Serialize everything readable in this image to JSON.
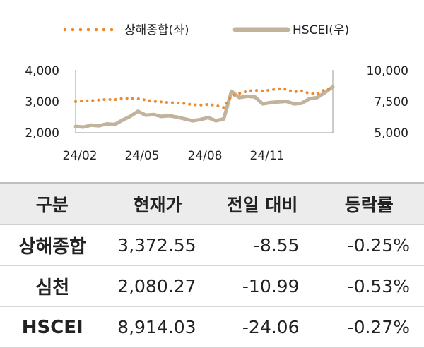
{
  "chart_data": {
    "type": "line",
    "x_ticks": [
      "24/02",
      "24/05",
      "24/08",
      "24/11"
    ],
    "y_left": {
      "ticks": [
        "4,000",
        "3,000",
        "2,000"
      ],
      "range": [
        2000,
        4000
      ]
    },
    "y_right": {
      "ticks": [
        "10,000",
        "7,500",
        "5,000"
      ],
      "range": [
        5000,
        10000
      ]
    },
    "grid": false,
    "legend_position": "top",
    "series": [
      {
        "name": "상해종합(좌)",
        "axis": "left",
        "color": "#ee8a2e",
        "style": "dotted",
        "values": [
          2990,
          3015,
          3020,
          3040,
          3060,
          3050,
          3090,
          3100,
          3080,
          3040,
          3000,
          2980,
          2960,
          2950,
          2930,
          2890,
          2880,
          2900,
          2870,
          2800,
          3170,
          3250,
          3320,
          3350,
          3330,
          3360,
          3400,
          3380,
          3300,
          3330,
          3250,
          3230,
          3380,
          3390
        ]
      },
      {
        "name": "HSCEI(우)",
        "axis": "right",
        "color": "#c2b49c",
        "style": "solid",
        "values": [
          5500,
          5450,
          5600,
          5550,
          5700,
          5650,
          6000,
          6300,
          6700,
          6400,
          6450,
          6300,
          6350,
          6250,
          6100,
          5950,
          6050,
          6200,
          5950,
          6100,
          8300,
          7800,
          7900,
          7850,
          7300,
          7400,
          7450,
          7500,
          7300,
          7350,
          7700,
          7800,
          8200,
          8650
        ]
      }
    ]
  },
  "table": {
    "headers": [
      "구분",
      "현재가",
      "전일 대비",
      "등락률"
    ],
    "rows": [
      {
        "name": "상해종합",
        "price": "3,372.55",
        "change": "-8.55",
        "rate": "-0.25%"
      },
      {
        "name": "심천",
        "price": "2,080.27",
        "change": "-10.99",
        "rate": "-0.53%"
      },
      {
        "name": "HSCEI",
        "price": "8,914.03",
        "change": "-24.06",
        "rate": "-0.27%"
      }
    ]
  }
}
